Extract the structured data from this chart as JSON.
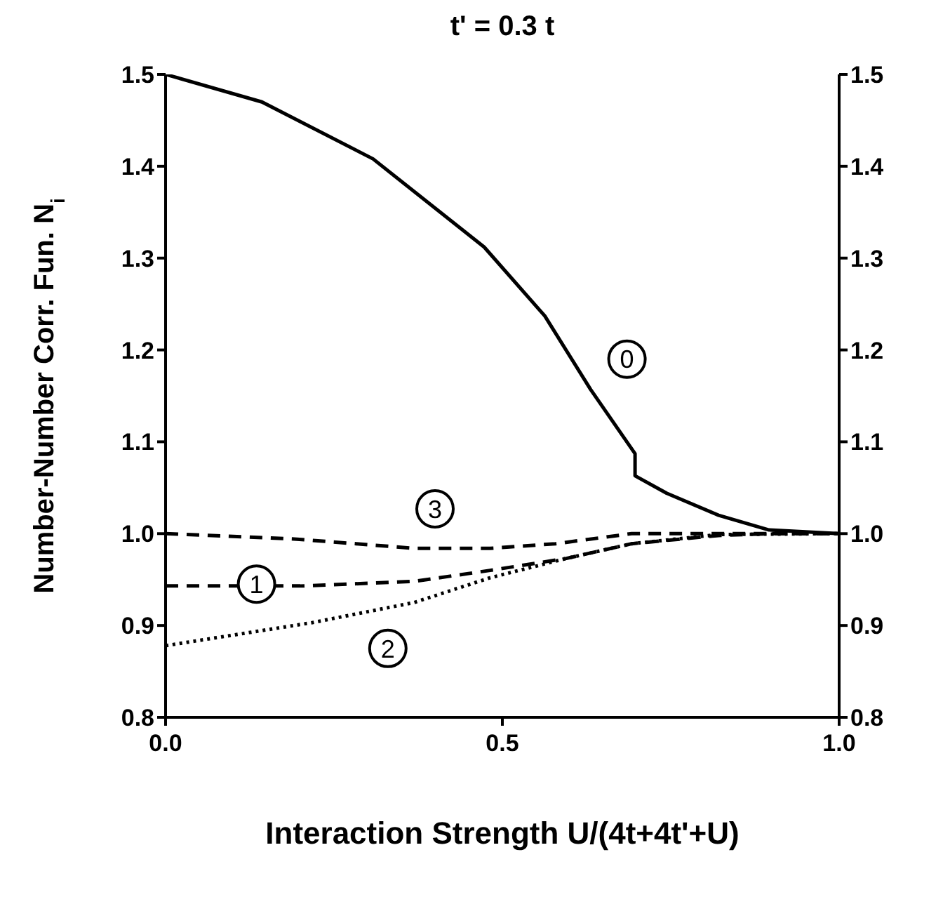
{
  "chart_data": {
    "type": "line",
    "title": "t' = 0.3 t",
    "xlabel": "Interaction Strength U/(4t+4t'+U)",
    "ylabel": "Number-Number Corr. Fun. N$_{i}$",
    "xlim": [
      0,
      1
    ],
    "xticks": [
      {
        "value": 0,
        "label": "0.0"
      },
      0.5,
      {
        "value": 1,
        "label": "1.0"
      }
    ],
    "ylim": [
      0.8,
      1.5
    ],
    "yticks": [
      0.8,
      0.9,
      {
        "value": 1,
        "label": "1.0"
      },
      1.1,
      1.2,
      1.3,
      1.4,
      1.5
    ],
    "y2lim": [
      0.8,
      1.5
    ],
    "y2ticks": [
      0.8,
      0.9,
      {
        "value": 1,
        "label": "1.0"
      },
      1.1,
      1.2,
      1.3,
      1.4,
      1.5
    ],
    "marker": "none",
    "series": [
      {
        "name": "0",
        "color": "#000000",
        "line_style": "solid",
        "x": [
          0,
          0.143,
          0.308,
          0.473,
          0.563,
          0.631,
          0.697,
          0.697,
          0.744,
          0.821,
          0.896,
          1
        ],
        "values": [
          1.5,
          1.47,
          1.408,
          1.312,
          1.237,
          1.157,
          1.087,
          1.063,
          1.044,
          1.02,
          1.004,
          1.0
        ]
      },
      {
        "name": "1",
        "color": "#000000",
        "line_style": "dashed",
        "x": [
          0,
          0.2,
          0.369,
          0.482,
          0.595,
          0.692,
          0.821,
          0.9,
          1
        ],
        "values": [
          0.943,
          0.943,
          0.948,
          0.96,
          0.973,
          0.989,
          0.998,
          1.0,
          1.0
        ]
      },
      {
        "name": "2",
        "color": "#000000",
        "line_style": "dotted",
        "x": [
          0,
          0.217,
          0.369,
          0.482,
          0.595,
          0.692,
          0.821,
          1
        ],
        "values": [
          0.878,
          0.903,
          0.925,
          0.952,
          0.973,
          0.989,
          0.999,
          1.0
        ]
      },
      {
        "name": "3",
        "color": "#000000",
        "line_style": "dashed",
        "x": [
          0,
          0.195,
          0.369,
          0.482,
          0.579,
          0.692,
          1
        ],
        "values": [
          1.0,
          0.994,
          0.984,
          0.984,
          0.989,
          1.0,
          1.0
        ]
      }
    ]
  }
}
